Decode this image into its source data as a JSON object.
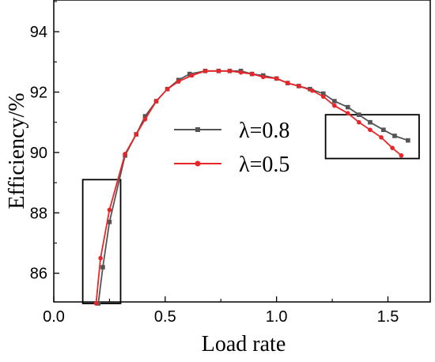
{
  "chart_data": {
    "type": "line",
    "title": "",
    "xlabel": "Load rate",
    "ylabel": "Efficiency/%",
    "xlim": [
      0.0,
      1.69
    ],
    "ylim": [
      85.05,
      95.05
    ],
    "x_ticks": [
      0.0,
      0.5,
      1.0,
      1.5
    ],
    "x_tick_labels": [
      "0.0",
      "0.5",
      "1.0",
      "1.5"
    ],
    "y_ticks": [
      86,
      88,
      90,
      92,
      94
    ],
    "y_tick_labels": [
      "86",
      "88",
      "90",
      "92",
      "94"
    ],
    "grid": false,
    "legend_position": "center-right",
    "series": [
      {
        "name": "λ=0.8",
        "color": "#555555",
        "marker": "square",
        "points": [
          {
            "x": 0.2,
            "y": 85.0
          },
          {
            "x": 0.22,
            "y": 86.2
          },
          {
            "x": 0.25,
            "y": 87.7
          },
          {
            "x": 0.32,
            "y": 89.9
          },
          {
            "x": 0.37,
            "y": 90.6
          },
          {
            "x": 0.41,
            "y": 91.2
          },
          {
            "x": 0.46,
            "y": 91.7
          },
          {
            "x": 0.51,
            "y": 92.1
          },
          {
            "x": 0.56,
            "y": 92.4
          },
          {
            "x": 0.61,
            "y": 92.6
          },
          {
            "x": 0.68,
            "y": 92.7
          },
          {
            "x": 0.74,
            "y": 92.7
          },
          {
            "x": 0.79,
            "y": 92.7
          },
          {
            "x": 0.84,
            "y": 92.7
          },
          {
            "x": 0.89,
            "y": 92.6
          },
          {
            "x": 0.94,
            "y": 92.55
          },
          {
            "x": 1.0,
            "y": 92.45
          },
          {
            "x": 1.05,
            "y": 92.3
          },
          {
            "x": 1.1,
            "y": 92.2
          },
          {
            "x": 1.15,
            "y": 92.1
          },
          {
            "x": 1.21,
            "y": 91.95
          },
          {
            "x": 1.26,
            "y": 91.7
          },
          {
            "x": 1.32,
            "y": 91.5
          },
          {
            "x": 1.37,
            "y": 91.25
          },
          {
            "x": 1.42,
            "y": 91.0
          },
          {
            "x": 1.48,
            "y": 90.75
          },
          {
            "x": 1.53,
            "y": 90.55
          },
          {
            "x": 1.59,
            "y": 90.4
          }
        ]
      },
      {
        "name": "λ=0.5",
        "color": "#e8262a",
        "marker": "circle",
        "points": [
          {
            "x": 0.19,
            "y": 85.0
          },
          {
            "x": 0.21,
            "y": 86.5
          },
          {
            "x": 0.25,
            "y": 88.1
          },
          {
            "x": 0.32,
            "y": 89.95
          },
          {
            "x": 0.37,
            "y": 90.6
          },
          {
            "x": 0.41,
            "y": 91.1
          },
          {
            "x": 0.46,
            "y": 91.7
          },
          {
            "x": 0.51,
            "y": 92.1
          },
          {
            "x": 0.56,
            "y": 92.35
          },
          {
            "x": 0.62,
            "y": 92.55
          },
          {
            "x": 0.68,
            "y": 92.7
          },
          {
            "x": 0.74,
            "y": 92.7
          },
          {
            "x": 0.79,
            "y": 92.7
          },
          {
            "x": 0.84,
            "y": 92.65
          },
          {
            "x": 0.89,
            "y": 92.6
          },
          {
            "x": 0.94,
            "y": 92.5
          },
          {
            "x": 1.0,
            "y": 92.45
          },
          {
            "x": 1.05,
            "y": 92.3
          },
          {
            "x": 1.1,
            "y": 92.2
          },
          {
            "x": 1.16,
            "y": 92.05
          },
          {
            "x": 1.21,
            "y": 91.85
          },
          {
            "x": 1.26,
            "y": 91.55
          },
          {
            "x": 1.32,
            "y": 91.3
          },
          {
            "x": 1.37,
            "y": 91.0
          },
          {
            "x": 1.42,
            "y": 90.75
          },
          {
            "x": 1.47,
            "y": 90.5
          },
          {
            "x": 1.52,
            "y": 90.15
          },
          {
            "x": 1.56,
            "y": 89.9
          }
        ]
      }
    ],
    "highlight_boxes": [
      {
        "x0": 0.13,
        "x1": 0.3,
        "y0": 85.0,
        "y1": 89.1
      },
      {
        "x0": 1.22,
        "x1": 1.64,
        "y0": 89.8,
        "y1": 91.25
      }
    ]
  }
}
